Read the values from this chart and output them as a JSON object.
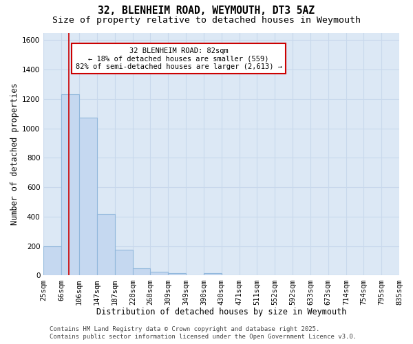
{
  "title_line1": "32, BLENHEIM ROAD, WEYMOUTH, DT3 5AZ",
  "title_line2": "Size of property relative to detached houses in Weymouth",
  "xlabel": "Distribution of detached houses by size in Weymouth",
  "ylabel": "Number of detached properties",
  "bin_edges": [
    25,
    66,
    106,
    147,
    187,
    228,
    268,
    309,
    349,
    390,
    430,
    471,
    511,
    552,
    592,
    633,
    673,
    714,
    754,
    795,
    835
  ],
  "bin_labels": [
    "25sqm",
    "66sqm",
    "106sqm",
    "147sqm",
    "187sqm",
    "228sqm",
    "268sqm",
    "309sqm",
    "349sqm",
    "390sqm",
    "430sqm",
    "471sqm",
    "511sqm",
    "552sqm",
    "592sqm",
    "633sqm",
    "673sqm",
    "714sqm",
    "754sqm",
    "795sqm",
    "835sqm"
  ],
  "bar_heights": [
    200,
    1230,
    1075,
    420,
    175,
    48,
    27,
    15,
    0,
    14,
    0,
    0,
    0,
    0,
    0,
    0,
    0,
    0,
    0,
    0
  ],
  "bar_color": "#c5d8f0",
  "bar_edge_color": "#92b8dc",
  "vline_x": 82,
  "vline_color": "#cc0000",
  "ylim": [
    0,
    1650
  ],
  "annotation_text": "32 BLENHEIM ROAD: 82sqm\n← 18% of detached houses are smaller (559)\n82% of semi-detached houses are larger (2,613) →",
  "annotation_box_color": "#ffffff",
  "annotation_box_edge_color": "#cc0000",
  "footer_line1": "Contains HM Land Registry data © Crown copyright and database right 2025.",
  "footer_line2": "Contains public sector information licensed under the Open Government Licence v3.0.",
  "bg_color": "#dce8f5",
  "grid_color": "#c8d8ec",
  "title_fontsize": 10.5,
  "subtitle_fontsize": 9.5,
  "tick_fontsize": 7.5,
  "label_fontsize": 8.5,
  "annotation_fontsize": 7.5,
  "footer_fontsize": 6.5
}
